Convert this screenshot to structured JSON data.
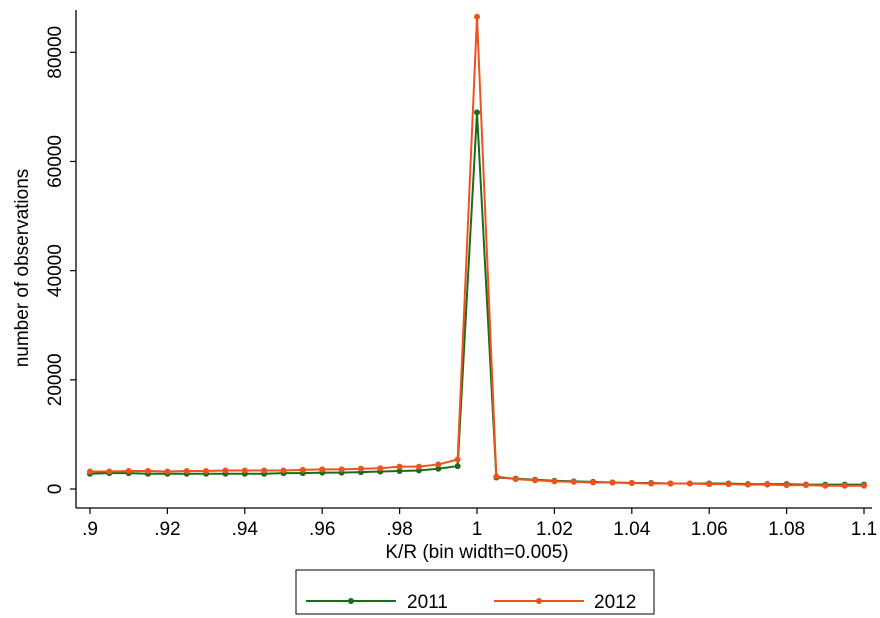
{
  "chart_data": {
    "type": "line",
    "title": "",
    "xlabel": "K/R (bin width=0.005)",
    "ylabel": "number of observations",
    "xlim": [
      0.9,
      1.1
    ],
    "ylim": [
      0,
      85000
    ],
    "x_ticks": [
      0.9,
      0.92,
      0.94,
      0.96,
      0.98,
      1.0,
      1.02,
      1.04,
      1.06,
      1.08,
      1.1
    ],
    "x_tick_labels": [
      ".9",
      ".92",
      ".94",
      ".96",
      ".98",
      "1",
      "1.02",
      "1.04",
      "1.06",
      "1.08",
      "1.1"
    ],
    "y_ticks": [
      0,
      20000,
      40000,
      60000,
      80000
    ],
    "y_tick_labels": [
      "0",
      "20000",
      "40000",
      "60000",
      "80000"
    ],
    "grid": false,
    "legend_position": "bottom",
    "x": [
      0.9,
      0.905,
      0.91,
      0.915,
      0.92,
      0.925,
      0.93,
      0.935,
      0.94,
      0.945,
      0.95,
      0.955,
      0.96,
      0.965,
      0.97,
      0.975,
      0.98,
      0.985,
      0.99,
      0.995,
      1.0,
      1.005,
      1.01,
      1.015,
      1.02,
      1.025,
      1.03,
      1.035,
      1.04,
      1.045,
      1.05,
      1.055,
      1.06,
      1.065,
      1.07,
      1.075,
      1.08,
      1.085,
      1.09,
      1.095,
      1.1
    ],
    "series": [
      {
        "name": "2011",
        "color": "#1a6b1a",
        "values": [
          2800,
          2900,
          2900,
          2800,
          2800,
          2800,
          2800,
          2800,
          2800,
          2800,
          2900,
          2900,
          3000,
          3000,
          3100,
          3200,
          3300,
          3400,
          3700,
          4200,
          69000,
          2100,
          1900,
          1700,
          1500,
          1400,
          1300,
          1200,
          1100,
          1100,
          1000,
          1000,
          1000,
          1000,
          900,
          900,
          900,
          800,
          800,
          800,
          800
        ]
      },
      {
        "name": "2012",
        "color": "#f0521d",
        "values": [
          3200,
          3200,
          3300,
          3300,
          3200,
          3300,
          3300,
          3400,
          3400,
          3400,
          3400,
          3500,
          3600,
          3600,
          3700,
          3800,
          4100,
          4100,
          4500,
          5400,
          86500,
          2300,
          1800,
          1600,
          1400,
          1300,
          1200,
          1200,
          1100,
          1000,
          1000,
          1000,
          900,
          900,
          800,
          800,
          700,
          700,
          600,
          600,
          600
        ]
      }
    ]
  }
}
